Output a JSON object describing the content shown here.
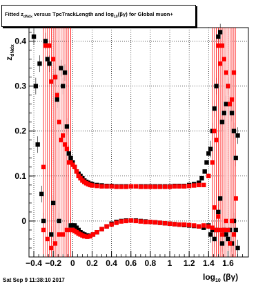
{
  "title": {
    "prefix": "Fitted  z",
    "sub1": "dNdx",
    "mid": " versus TpcTrackLength and log",
    "sub2": "10",
    "suffix": "(βγ) for Global muon+"
  },
  "timestamp": "Sat Sep  9 11:38:10 2017",
  "colors": {
    "red": "#ff0000",
    "black": "#000000",
    "grid": "#000000"
  },
  "chart_data": {
    "type": "scatter",
    "xlabel": "log₁₀(βγ)",
    "ylabel": "z_dNdx",
    "xlim": [
      -0.45,
      1.81
    ],
    "ylim": [
      -0.08,
      0.43
    ],
    "grid": true,
    "x_ticks": [
      -0.4,
      -0.2,
      0,
      0.2,
      0.4,
      0.6,
      0.8,
      1,
      1.2,
      1.4,
      1.6
    ],
    "x_tick_labels": [
      "−0.4",
      "−0.2",
      "0",
      "0.2",
      "0.4",
      "0.6",
      "0.8",
      "1",
      "1.2",
      "1.4",
      "1.6"
    ],
    "y_ticks": [
      0,
      0.1,
      0.2,
      0.3,
      0.4
    ],
    "y_tick_labels": [
      "0",
      "0.1",
      "0.2",
      "0.3",
      "0.4"
    ],
    "series": [
      {
        "color": "black",
        "marker": "square",
        "points": [
          [
            -0.4,
            0.41
          ],
          [
            -0.38,
            0.3
          ],
          [
            -0.36,
            0.17
          ],
          [
            -0.34,
            0.35
          ],
          [
            -0.32,
            0.06
          ],
          [
            -0.3,
            0.0
          ],
          [
            -0.28,
            0.4
          ],
          [
            -0.26,
            0.36
          ],
          [
            -0.24,
            0.35
          ],
          [
            -0.22,
            -0.03
          ],
          [
            -0.2,
            0.04
          ],
          [
            -0.18,
            0.32
          ],
          [
            -0.16,
            0.27
          ],
          [
            -0.14,
            0.0
          ],
          [
            -0.12,
            0.34
          ],
          [
            -0.1,
            0.3
          ],
          [
            -0.08,
            0.33
          ],
          [
            -0.06,
            0.21
          ],
          [
            -0.04,
            0.15
          ],
          [
            -0.02,
            0.14
          ],
          [
            0.0,
            0.13
          ],
          [
            0.02,
            0.12
          ],
          [
            0.04,
            0.11
          ],
          [
            0.06,
            0.105
          ],
          [
            0.08,
            0.1
          ],
          [
            0.1,
            0.095
          ],
          [
            0.12,
            0.09
          ],
          [
            0.14,
            0.087
          ],
          [
            0.16,
            0.085
          ],
          [
            0.18,
            0.083
          ],
          [
            0.2,
            0.082
          ],
          [
            0.25,
            0.08
          ],
          [
            0.3,
            0.079
          ],
          [
            0.35,
            0.078
          ],
          [
            0.4,
            0.078
          ],
          [
            0.45,
            0.077
          ],
          [
            0.5,
            0.077
          ],
          [
            0.55,
            0.077
          ],
          [
            0.6,
            0.077
          ],
          [
            0.65,
            0.077
          ],
          [
            0.7,
            0.077
          ],
          [
            0.75,
            0.077
          ],
          [
            0.8,
            0.077
          ],
          [
            0.85,
            0.077
          ],
          [
            0.9,
            0.077
          ],
          [
            0.95,
            0.077
          ],
          [
            1.0,
            0.077
          ],
          [
            1.05,
            0.078
          ],
          [
            1.1,
            0.078
          ],
          [
            1.15,
            0.078
          ],
          [
            1.2,
            0.08
          ],
          [
            1.25,
            0.082
          ],
          [
            1.3,
            0.085
          ],
          [
            1.33,
            0.095
          ],
          [
            1.36,
            0.11
          ],
          [
            1.38,
            0.13
          ],
          [
            1.4,
            0.15
          ],
          [
            1.42,
            0.16
          ],
          [
            1.44,
            0.2
          ],
          [
            1.46,
            0.25
          ],
          [
            1.48,
            0.3
          ],
          [
            1.5,
            0.41
          ],
          [
            1.52,
            0.42
          ],
          [
            1.54,
            0.22
          ],
          [
            1.56,
            0.24
          ],
          [
            1.58,
            0.26
          ],
          [
            1.6,
            0.3
          ],
          [
            1.62,
            0.26
          ],
          [
            1.64,
            0.24
          ],
          [
            1.66,
            0.2
          ],
          [
            1.68,
            0.14
          ],
          [
            1.7,
            0.19
          ],
          [
            -0.02,
            -0.01
          ],
          [
            0.0,
            -0.01
          ],
          [
            0.02,
            -0.01
          ],
          [
            0.04,
            -0.015
          ],
          [
            0.06,
            -0.02
          ],
          [
            0.08,
            -0.025
          ],
          [
            0.1,
            -0.028
          ],
          [
            0.12,
            -0.03
          ],
          [
            0.15,
            -0.032
          ],
          [
            0.18,
            -0.033
          ],
          [
            0.21,
            -0.03
          ],
          [
            0.25,
            -0.025
          ],
          [
            0.3,
            -0.018
          ],
          [
            0.35,
            -0.012
          ],
          [
            0.4,
            -0.006
          ],
          [
            0.45,
            -0.002
          ],
          [
            0.5,
            0.0
          ],
          [
            0.55,
            0.001
          ],
          [
            0.6,
            0.001
          ],
          [
            0.65,
            0.001
          ],
          [
            0.7,
            0.0
          ],
          [
            0.75,
            -0.001
          ],
          [
            0.8,
            -0.002
          ],
          [
            0.85,
            -0.003
          ],
          [
            0.9,
            -0.004
          ],
          [
            0.95,
            -0.005
          ],
          [
            1.0,
            -0.006
          ],
          [
            1.05,
            -0.007
          ],
          [
            1.1,
            -0.008
          ],
          [
            1.15,
            -0.009
          ],
          [
            1.2,
            -0.01
          ],
          [
            1.25,
            -0.011
          ],
          [
            1.3,
            -0.012
          ],
          [
            1.35,
            -0.015
          ],
          [
            1.4,
            -0.01
          ],
          [
            1.42,
            -0.03
          ],
          [
            1.44,
            -0.02
          ],
          [
            1.46,
            -0.04
          ],
          [
            1.48,
            -0.02
          ],
          [
            1.5,
            0.02
          ],
          [
            1.52,
            0.05
          ],
          [
            1.54,
            -0.05
          ],
          [
            1.56,
            -0.02
          ],
          [
            1.58,
            -0.03
          ],
          [
            1.6,
            -0.04
          ],
          [
            1.62,
            -0.02
          ],
          [
            1.64,
            -0.05
          ],
          [
            1.66,
            0.0
          ],
          [
            1.68,
            -0.02
          ],
          [
            1.7,
            -0.06
          ]
        ]
      },
      {
        "color": "red",
        "marker": "square",
        "points": [
          [
            -0.3,
            0.12
          ],
          [
            -0.28,
            0.39
          ],
          [
            -0.26,
            0.39
          ],
          [
            -0.24,
            0.39
          ],
          [
            -0.22,
            0.31
          ],
          [
            -0.2,
            0.36
          ],
          [
            -0.18,
            0.32
          ],
          [
            -0.16,
            0.28
          ],
          [
            -0.14,
            0.22
          ],
          [
            -0.12,
            0.18
          ],
          [
            -0.1,
            0.19
          ],
          [
            -0.08,
            0.17
          ],
          [
            -0.06,
            0.16
          ],
          [
            -0.04,
            0.13
          ],
          [
            -0.02,
            0.13
          ],
          [
            0.0,
            0.125
          ],
          [
            0.02,
            0.12
          ],
          [
            0.04,
            0.11
          ],
          [
            0.06,
            0.1
          ],
          [
            0.08,
            0.095
          ],
          [
            0.1,
            0.09
          ],
          [
            0.12,
            0.087
          ],
          [
            0.14,
            0.084
          ],
          [
            0.16,
            0.082
          ],
          [
            0.18,
            0.08
          ],
          [
            0.2,
            0.079
          ],
          [
            0.25,
            0.078
          ],
          [
            0.3,
            0.077
          ],
          [
            0.35,
            0.077
          ],
          [
            0.4,
            0.077
          ],
          [
            0.45,
            0.076
          ],
          [
            0.5,
            0.076
          ],
          [
            0.55,
            0.076
          ],
          [
            0.6,
            0.077
          ],
          [
            0.65,
            0.077
          ],
          [
            0.7,
            0.076
          ],
          [
            0.75,
            0.076
          ],
          [
            0.8,
            0.076
          ],
          [
            0.85,
            0.076
          ],
          [
            0.9,
            0.076
          ],
          [
            0.95,
            0.076
          ],
          [
            1.0,
            0.076
          ],
          [
            1.05,
            0.077
          ],
          [
            1.1,
            0.077
          ],
          [
            1.15,
            0.077
          ],
          [
            1.2,
            0.078
          ],
          [
            1.25,
            0.079
          ],
          [
            1.3,
            0.08
          ],
          [
            1.35,
            0.08
          ],
          [
            1.4,
            0.1
          ],
          [
            1.44,
            0.13
          ],
          [
            1.46,
            0.2
          ],
          [
            1.48,
            0.18
          ],
          [
            1.5,
            0.39
          ],
          [
            1.52,
            0.35
          ],
          [
            1.54,
            0.39
          ],
          [
            1.56,
            0.36
          ],
          [
            1.58,
            0.33
          ],
          [
            1.6,
            0.3
          ],
          [
            1.62,
            0.26
          ],
          [
            1.64,
            0.27
          ],
          [
            1.66,
            0.33
          ],
          [
            1.68,
            0.05
          ],
          [
            -0.3,
            -0.02
          ],
          [
            -0.26,
            -0.04
          ],
          [
            -0.22,
            -0.06
          ],
          [
            -0.18,
            -0.05
          ],
          [
            -0.14,
            -0.03
          ],
          [
            -0.1,
            -0.03
          ],
          [
            -0.06,
            -0.02
          ],
          [
            -0.02,
            -0.02
          ],
          [
            0.0,
            -0.02
          ],
          [
            0.02,
            -0.022
          ],
          [
            0.04,
            -0.025
          ],
          [
            0.06,
            -0.028
          ],
          [
            0.08,
            -0.03
          ],
          [
            0.1,
            -0.032
          ],
          [
            0.12,
            -0.034
          ],
          [
            0.15,
            -0.035
          ],
          [
            0.18,
            -0.034
          ],
          [
            0.21,
            -0.03
          ],
          [
            0.25,
            -0.025
          ],
          [
            0.3,
            -0.018
          ],
          [
            0.35,
            -0.012
          ],
          [
            0.4,
            -0.008
          ],
          [
            0.45,
            -0.004
          ],
          [
            0.5,
            -0.001
          ],
          [
            0.55,
            0.0
          ],
          [
            0.6,
            0.001
          ],
          [
            0.65,
            0.0
          ],
          [
            0.7,
            -0.001
          ],
          [
            0.75,
            -0.002
          ],
          [
            0.8,
            -0.002
          ],
          [
            0.85,
            -0.003
          ],
          [
            0.9,
            -0.004
          ],
          [
            0.95,
            -0.005
          ],
          [
            1.0,
            -0.006
          ],
          [
            1.05,
            -0.007
          ],
          [
            1.1,
            -0.008
          ],
          [
            1.15,
            -0.008
          ],
          [
            1.2,
            -0.009
          ],
          [
            1.25,
            -0.01
          ],
          [
            1.3,
            -0.012
          ],
          [
            1.35,
            -0.01
          ],
          [
            1.4,
            -0.012
          ],
          [
            1.44,
            -0.015
          ],
          [
            1.46,
            0.03
          ],
          [
            1.48,
            -0.02
          ],
          [
            1.5,
            0.01
          ],
          [
            1.52,
            -0.02
          ],
          [
            1.54,
            -0.03
          ],
          [
            1.56,
            -0.02
          ],
          [
            1.58,
            0.0
          ],
          [
            1.6,
            -0.02
          ],
          [
            1.62,
            -0.05
          ],
          [
            1.64,
            0.0
          ],
          [
            1.66,
            -0.03
          ]
        ]
      }
    ]
  }
}
